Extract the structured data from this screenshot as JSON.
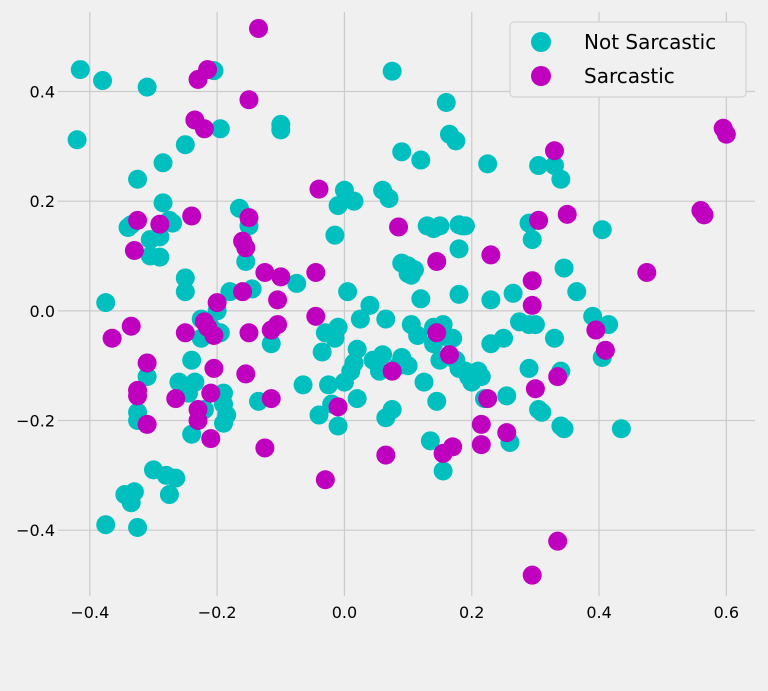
{
  "chart_data": {
    "type": "scatter",
    "title": "",
    "xlabel": "",
    "ylabel": "",
    "xlim": [
      -0.45,
      0.645
    ],
    "ylim": [
      -0.52,
      0.545
    ],
    "xticks": [
      -0.4,
      -0.2,
      0.0,
      0.2,
      0.4,
      0.6
    ],
    "xtick_labels": [
      "−0.4",
      "−0.2",
      "0.0",
      "0.2",
      "0.4",
      "0.6"
    ],
    "yticks": [
      -0.4,
      -0.2,
      0.0,
      0.2,
      0.4
    ],
    "ytick_labels": [
      "−0.4",
      "−0.2",
      "0.0",
      "0.2",
      "0.4"
    ],
    "grid": true,
    "legend_position": "top-right",
    "series": [
      {
        "name": "Not Sarcastic",
        "color": "#00bfbf",
        "points": [
          [
            -0.415,
            0.44
          ],
          [
            -0.38,
            0.42
          ],
          [
            -0.31,
            0.408
          ],
          [
            -0.205,
            0.438
          ],
          [
            -0.42,
            0.312
          ],
          [
            -0.195,
            0.332
          ],
          [
            -0.25,
            0.303
          ],
          [
            -0.285,
            0.27
          ],
          [
            -0.325,
            0.24
          ],
          [
            -0.285,
            0.197
          ],
          [
            -0.34,
            0.152
          ],
          [
            -0.335,
            0.157
          ],
          [
            -0.305,
            0.13
          ],
          [
            -0.29,
            0.135
          ],
          [
            -0.275,
            0.165
          ],
          [
            -0.27,
            0.16
          ],
          [
            -0.305,
            0.1
          ],
          [
            -0.29,
            0.098
          ],
          [
            -0.25,
            0.06
          ],
          [
            -0.25,
            0.035
          ],
          [
            -0.375,
            0.015
          ],
          [
            -0.2,
            0.0
          ],
          [
            -0.225,
            -0.015
          ],
          [
            -0.21,
            -0.03
          ],
          [
            -0.195,
            -0.04
          ],
          [
            -0.225,
            -0.05
          ],
          [
            -0.24,
            -0.09
          ],
          [
            -0.31,
            -0.12
          ],
          [
            -0.26,
            -0.13
          ],
          [
            -0.245,
            -0.15
          ],
          [
            -0.235,
            -0.13
          ],
          [
            -0.22,
            -0.18
          ],
          [
            -0.19,
            -0.15
          ],
          [
            -0.19,
            -0.17
          ],
          [
            -0.185,
            -0.19
          ],
          [
            -0.19,
            -0.205
          ],
          [
            -0.24,
            -0.225
          ],
          [
            -0.325,
            -0.185
          ],
          [
            -0.325,
            -0.2
          ],
          [
            -0.3,
            -0.29
          ],
          [
            -0.28,
            -0.3
          ],
          [
            -0.265,
            -0.305
          ],
          [
            -0.275,
            -0.335
          ],
          [
            -0.345,
            -0.335
          ],
          [
            -0.33,
            -0.33
          ],
          [
            -0.335,
            -0.35
          ],
          [
            -0.375,
            -0.39
          ],
          [
            -0.325,
            -0.395
          ],
          [
            -0.165,
            0.187
          ],
          [
            -0.15,
            0.155
          ],
          [
            -0.155,
            0.09
          ],
          [
            -0.145,
            0.04
          ],
          [
            -0.18,
            0.035
          ],
          [
            -0.135,
            -0.165
          ],
          [
            -0.115,
            -0.06
          ],
          [
            -0.075,
            0.05
          ],
          [
            -0.1,
            0.34
          ],
          [
            -0.1,
            0.33
          ],
          [
            -0.065,
            -0.135
          ],
          [
            -0.04,
            -0.19
          ],
          [
            -0.035,
            -0.075
          ],
          [
            -0.03,
            -0.04
          ],
          [
            -0.025,
            -0.135
          ],
          [
            -0.02,
            -0.17
          ],
          [
            -0.015,
            -0.05
          ],
          [
            -0.01,
            -0.03
          ],
          [
            -0.01,
            -0.21
          ],
          [
            -0.015,
            0.138
          ],
          [
            -0.01,
            0.192
          ],
          [
            0.0,
            0.22
          ],
          [
            0.015,
            0.2
          ],
          [
            0.005,
            0.035
          ],
          [
            0.0,
            -0.13
          ],
          [
            0.01,
            -0.11
          ],
          [
            0.015,
            -0.095
          ],
          [
            0.02,
            -0.07
          ],
          [
            0.025,
            -0.015
          ],
          [
            0.02,
            -0.16
          ],
          [
            0.04,
            0.01
          ],
          [
            0.045,
            -0.09
          ],
          [
            0.055,
            -0.11
          ],
          [
            0.06,
            -0.08
          ],
          [
            0.06,
            0.22
          ],
          [
            0.07,
            0.205
          ],
          [
            0.065,
            -0.015
          ],
          [
            0.065,
            -0.195
          ],
          [
            0.075,
            -0.18
          ],
          [
            0.075,
            0.437
          ],
          [
            0.085,
            -0.1
          ],
          [
            0.09,
            -0.085
          ],
          [
            0.09,
            0.29
          ],
          [
            0.09,
            0.087
          ],
          [
            0.1,
            0.082
          ],
          [
            0.105,
            0.065
          ],
          [
            0.11,
            0.075
          ],
          [
            0.1,
            -0.1
          ],
          [
            0.105,
            -0.025
          ],
          [
            0.115,
            -0.045
          ],
          [
            0.12,
            0.275
          ],
          [
            0.12,
            0.022
          ],
          [
            0.125,
            -0.13
          ],
          [
            0.13,
            0.155
          ],
          [
            0.14,
            0.15
          ],
          [
            0.15,
            0.155
          ],
          [
            0.14,
            -0.06
          ],
          [
            0.145,
            -0.165
          ],
          [
            0.15,
            -0.09
          ],
          [
            0.155,
            -0.025
          ],
          [
            0.135,
            -0.237
          ],
          [
            0.16,
            0.38
          ],
          [
            0.165,
            0.322
          ],
          [
            0.175,
            0.31
          ],
          [
            0.17,
            -0.05
          ],
          [
            0.18,
            0.157
          ],
          [
            0.185,
            0.155
          ],
          [
            0.19,
            0.155
          ],
          [
            0.18,
            0.113
          ],
          [
            0.18,
            0.03
          ],
          [
            0.18,
            -0.105
          ],
          [
            0.19,
            -0.11
          ],
          [
            0.195,
            -0.12
          ],
          [
            0.2,
            -0.13
          ],
          [
            0.21,
            -0.11
          ],
          [
            0.215,
            -0.12
          ],
          [
            0.22,
            -0.16
          ],
          [
            0.225,
            0.268
          ],
          [
            0.23,
            0.02
          ],
          [
            0.23,
            -0.06
          ],
          [
            0.25,
            -0.05
          ],
          [
            0.255,
            -0.155
          ],
          [
            0.26,
            -0.24
          ],
          [
            0.265,
            0.032
          ],
          [
            0.275,
            -0.02
          ],
          [
            0.29,
            0.16
          ],
          [
            0.29,
            -0.105
          ],
          [
            0.295,
            0.13
          ],
          [
            0.29,
            -0.025
          ],
          [
            0.3,
            -0.025
          ],
          [
            0.305,
            0.265
          ],
          [
            0.305,
            0.165
          ],
          [
            0.305,
            -0.18
          ],
          [
            0.31,
            -0.185
          ],
          [
            0.33,
            0.265
          ],
          [
            0.33,
            -0.05
          ],
          [
            0.34,
            0.24
          ],
          [
            0.34,
            -0.21
          ],
          [
            0.345,
            -0.215
          ],
          [
            0.34,
            -0.11
          ],
          [
            0.345,
            0.078
          ],
          [
            0.365,
            0.035
          ],
          [
            0.39,
            -0.01
          ],
          [
            0.405,
            0.148
          ],
          [
            0.405,
            -0.085
          ],
          [
            0.415,
            -0.025
          ],
          [
            0.435,
            -0.215
          ],
          [
            0.155,
            -0.292
          ],
          [
            0.165,
            -0.05
          ],
          [
            0.175,
            -0.09
          ],
          [
            0.14,
            -0.03
          ],
          [
            0.1,
            0.068
          ]
        ]
      },
      {
        "name": "Sarcastic",
        "color": "#bf00bf",
        "points": [
          [
            -0.135,
            0.515
          ],
          [
            -0.215,
            0.44
          ],
          [
            -0.23,
            0.422
          ],
          [
            -0.15,
            0.385
          ],
          [
            -0.235,
            0.348
          ],
          [
            -0.22,
            0.332
          ],
          [
            -0.24,
            0.173
          ],
          [
            -0.325,
            0.165
          ],
          [
            -0.29,
            0.158
          ],
          [
            -0.15,
            0.17
          ],
          [
            -0.16,
            0.127
          ],
          [
            -0.155,
            0.115
          ],
          [
            -0.33,
            0.11
          ],
          [
            -0.125,
            0.07
          ],
          [
            -0.1,
            0.062
          ],
          [
            -0.045,
            0.07
          ],
          [
            -0.04,
            0.222
          ],
          [
            -0.16,
            0.035
          ],
          [
            -0.2,
            0.015
          ],
          [
            -0.105,
            0.02
          ],
          [
            -0.22,
            -0.02
          ],
          [
            -0.215,
            -0.03
          ],
          [
            -0.205,
            -0.045
          ],
          [
            -0.25,
            -0.04
          ],
          [
            -0.335,
            -0.028
          ],
          [
            -0.365,
            -0.05
          ],
          [
            -0.15,
            -0.04
          ],
          [
            -0.105,
            -0.025
          ],
          [
            -0.115,
            -0.035
          ],
          [
            -0.045,
            -0.01
          ],
          [
            -0.31,
            -0.095
          ],
          [
            -0.205,
            -0.105
          ],
          [
            -0.155,
            -0.115
          ],
          [
            -0.325,
            -0.145
          ],
          [
            -0.325,
            -0.155
          ],
          [
            -0.21,
            -0.15
          ],
          [
            -0.265,
            -0.16
          ],
          [
            -0.115,
            -0.16
          ],
          [
            -0.23,
            -0.18
          ],
          [
            -0.23,
            -0.2
          ],
          [
            -0.31,
            -0.207
          ],
          [
            -0.21,
            -0.233
          ],
          [
            -0.125,
            -0.25
          ],
          [
            -0.03,
            -0.308
          ],
          [
            -0.01,
            -0.175
          ],
          [
            0.075,
            -0.11
          ],
          [
            0.085,
            0.153
          ],
          [
            0.145,
            -0.04
          ],
          [
            0.145,
            0.09
          ],
          [
            0.165,
            -0.08
          ],
          [
            0.155,
            -0.26
          ],
          [
            0.17,
            -0.248
          ],
          [
            0.225,
            -0.16
          ],
          [
            0.23,
            0.102
          ],
          [
            0.215,
            -0.207
          ],
          [
            0.215,
            -0.244
          ],
          [
            0.255,
            -0.222
          ],
          [
            0.065,
            -0.263
          ],
          [
            0.295,
            0.055
          ],
          [
            0.295,
            0.01
          ],
          [
            0.3,
            -0.142
          ],
          [
            0.305,
            0.165
          ],
          [
            0.33,
            0.292
          ],
          [
            0.335,
            -0.12
          ],
          [
            0.35,
            0.176
          ],
          [
            0.335,
            -0.42
          ],
          [
            0.295,
            -0.482
          ],
          [
            0.395,
            -0.035
          ],
          [
            0.41,
            -0.072
          ],
          [
            0.475,
            0.07
          ],
          [
            0.56,
            0.183
          ],
          [
            0.565,
            0.175
          ],
          [
            0.595,
            0.333
          ],
          [
            0.6,
            0.322
          ]
        ]
      }
    ]
  }
}
